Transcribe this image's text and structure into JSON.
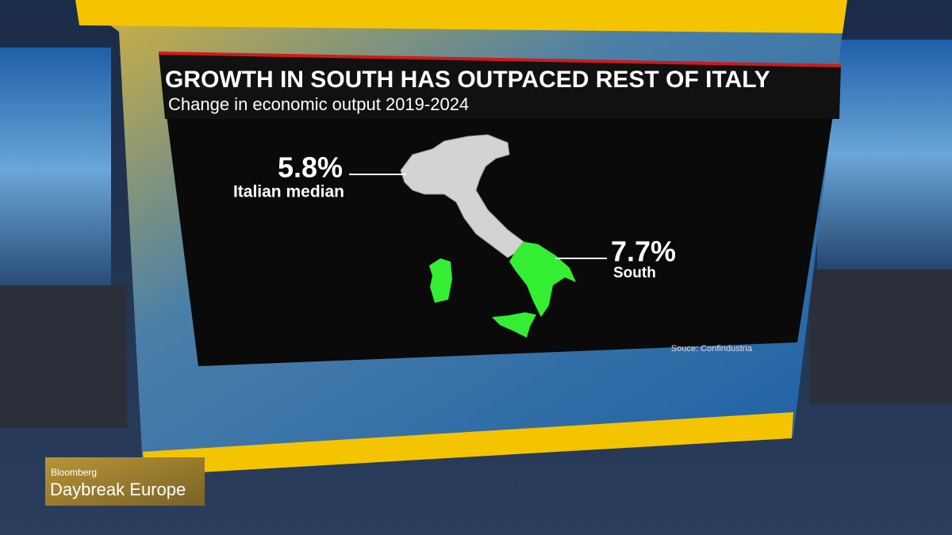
{
  "header": {
    "title": "GROWTH IN SOUTH HAS OUTPACED REST OF ITALY",
    "subtitle": "Change in economic output 2019-2024"
  },
  "annotations": [
    {
      "value": "5.8%",
      "label": "Italian median"
    },
    {
      "value": "7.7%",
      "label": "South"
    }
  ],
  "source": "Souce: Confindustria",
  "branding": {
    "network": "Bloomberg",
    "show": "Daybreak Europe"
  }
}
